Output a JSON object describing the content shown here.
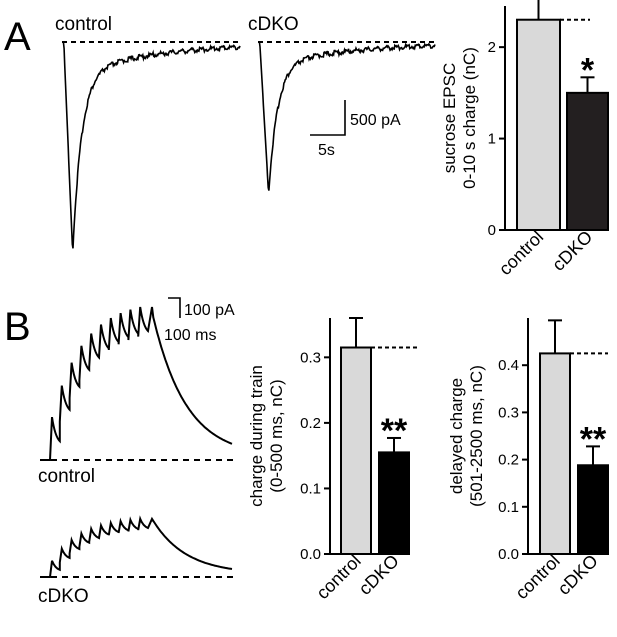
{
  "panels": {
    "a": {
      "letter": "A",
      "traces": [
        {
          "label": "control",
          "peak": 1.0
        },
        {
          "label": "cDKO",
          "peak": 0.72
        }
      ],
      "scale_bar": {
        "y_label": "500 pA",
        "x_label": "5s"
      }
    },
    "b": {
      "letter": "B",
      "traces": [
        {
          "label": "control",
          "peak": 1.0
        },
        {
          "label": "cDKO",
          "peak": 0.38
        }
      ],
      "scale_bar": {
        "y_label": "100 pA",
        "x_label": "100 ms"
      }
    }
  },
  "chart_data": [
    {
      "type": "bar",
      "panel": "A",
      "categories": [
        "control",
        "cDKO"
      ],
      "values": [
        2.3,
        1.5
      ],
      "errors": [
        0.33,
        0.17
      ],
      "colors": [
        "#d9d9d9",
        "#231f20"
      ],
      "ylabel_lines": [
        "sucrose EPSC",
        "0-10 s charge (nC)"
      ],
      "ylim": [
        0,
        2.45
      ],
      "yticks": [
        "0",
        "1",
        "2"
      ],
      "ytick_values": [
        0,
        1,
        2
      ],
      "reference_line": 2.3,
      "significance": [
        "",
        "*"
      ]
    },
    {
      "type": "bar",
      "panel": "B",
      "categories": [
        "control",
        "cDKO"
      ],
      "values": [
        0.315,
        0.155
      ],
      "errors": [
        0.045,
        0.022
      ],
      "colors": [
        "#d9d9d9",
        "#000000"
      ],
      "ylabel_lines": [
        "charge during train",
        "(0-500 ms, nC)"
      ],
      "ylim": [
        0,
        0.36
      ],
      "yticks": [
        "0.0",
        "0.1",
        "0.2",
        "0.3"
      ],
      "ytick_values": [
        0,
        0.1,
        0.2,
        0.3
      ],
      "reference_line": 0.315,
      "significance": [
        "",
        "**"
      ]
    },
    {
      "type": "bar",
      "panel": "B",
      "categories": [
        "control",
        "cDKO"
      ],
      "values": [
        0.425,
        0.188
      ],
      "errors": [
        0.07,
        0.04
      ],
      "colors": [
        "#d9d9d9",
        "#000000"
      ],
      "ylabel_lines": [
        "delayed charge",
        "(501-2500 ms, nC)"
      ],
      "ylim": [
        0,
        0.5
      ],
      "yticks": [
        "0.0",
        "0.1",
        "0.2",
        "0.3",
        "0.4"
      ],
      "ytick_values": [
        0,
        0.1,
        0.2,
        0.3,
        0.4
      ],
      "reference_line": 0.425,
      "significance": [
        "",
        "**"
      ]
    }
  ]
}
